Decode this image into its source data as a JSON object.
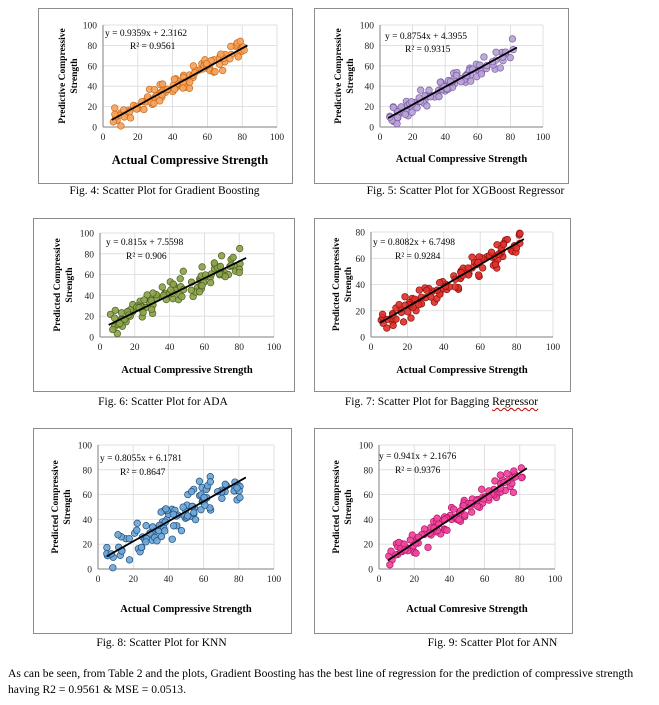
{
  "chart_data": [
    {
      "type": "scatter",
      "title": "",
      "ylabel_lines": [
        "Predictive Compressive",
        "Strength"
      ],
      "xlabel": "Actual Compressive Strength",
      "xlim": [
        0,
        100
      ],
      "ylim": [
        0,
        100
      ],
      "xticks": [
        0,
        20,
        40,
        60,
        80,
        100
      ],
      "yticks": [
        0,
        20,
        40,
        60,
        80,
        100
      ],
      "equation": "y = 0.9359x + 2.3162",
      "r2": "R² = 0.9561",
      "slope": 0.9359,
      "intercept": 2.3162,
      "trend_x": [
        5,
        83
      ],
      "n_points": 110,
      "x_range": [
        5,
        82
      ],
      "noise": 4.5,
      "seed": 11,
      "marker_fill": "#f7a35c",
      "marker_stroke": "#c96a1a",
      "grid": true
    },
    {
      "type": "scatter",
      "title": "",
      "ylabel_lines": [
        "Predictive Compressive",
        "Strength"
      ],
      "xlabel": "Actual Compressive Strength",
      "xlim": [
        0,
        100
      ],
      "ylim": [
        0,
        100
      ],
      "xticks": [
        0,
        20,
        40,
        60,
        80,
        100
      ],
      "yticks": [
        0,
        20,
        40,
        60,
        80,
        100
      ],
      "equation": "y = 0.8754x + 4.3955",
      "r2": "R² = 0.9315",
      "slope": 0.8754,
      "intercept": 4.3955,
      "trend_x": [
        5,
        84
      ],
      "n_points": 110,
      "x_range": [
        5,
        82
      ],
      "noise": 5,
      "seed": 23,
      "marker_fill": "#b9a3d6",
      "marker_stroke": "#7b5ea6",
      "grid": true
    },
    {
      "type": "scatter",
      "title": "",
      "ylabel_lines": [
        "Predicted Compressive",
        "Strength"
      ],
      "xlabel": "Actual Compressive Strength",
      "xlim": [
        0,
        100
      ],
      "ylim": [
        0,
        100
      ],
      "xticks": [
        0,
        20,
        40,
        60,
        80,
        100
      ],
      "yticks": [
        0,
        20,
        40,
        60,
        80,
        100
      ],
      "equation": "y = 0.815x + 7.5598",
      "r2": "R² = 0.906",
      "slope": 0.815,
      "intercept": 7.5598,
      "trend_x": [
        5,
        84
      ],
      "n_points": 110,
      "x_range": [
        5,
        82
      ],
      "noise": 6,
      "seed": 37,
      "marker_fill": "#8ba34a",
      "marker_stroke": "#4d6020",
      "grid": true
    },
    {
      "type": "scatter",
      "title": "",
      "ylabel_lines": [
        "Predicted Compressive",
        "Strength"
      ],
      "xlabel": "Actual Compressive Strength",
      "xlim": [
        0,
        100
      ],
      "ylim": [
        0,
        80
      ],
      "xticks": [
        0,
        20,
        40,
        60,
        80,
        100
      ],
      "yticks": [
        0,
        20,
        40,
        60,
        80
      ],
      "equation": "y = 0.8082x + 6.7498",
      "r2": "R² = 0.9284",
      "slope": 0.8082,
      "intercept": 6.7498,
      "trend_x": [
        5,
        84
      ],
      "n_points": 110,
      "x_range": [
        5,
        82
      ],
      "noise": 5,
      "seed": 53,
      "marker_fill": "#e0312b",
      "marker_stroke": "#8e1410",
      "grid": true
    },
    {
      "type": "scatter",
      "title": "",
      "ylabel_lines": [
        "Predicted Compressive",
        "Strength"
      ],
      "xlabel": "Actual Compressive Strength",
      "xlim": [
        0,
        100
      ],
      "ylim": [
        0,
        100
      ],
      "xticks": [
        0,
        20,
        40,
        60,
        80,
        100
      ],
      "yticks": [
        0,
        20,
        40,
        60,
        80,
        100
      ],
      "equation": "y = 0.8055x + 6.1781",
      "r2": "R² = 0.8647",
      "slope": 0.8055,
      "intercept": 6.1781,
      "trend_x": [
        5,
        84
      ],
      "n_points": 110,
      "x_range": [
        5,
        82
      ],
      "noise": 7,
      "seed": 71,
      "marker_fill": "#6ea6d8",
      "marker_stroke": "#1f4e79",
      "grid": true
    },
    {
      "type": "scatter",
      "title": "",
      "ylabel_lines": [
        "Predicted Compressive",
        "Strength"
      ],
      "xlabel": "Actual Comresive Strength",
      "xlim": [
        0,
        100
      ],
      "ylim": [
        0,
        100
      ],
      "xticks": [
        0,
        20,
        40,
        60,
        80,
        100
      ],
      "yticks": [
        0,
        20,
        40,
        60,
        80,
        100
      ],
      "equation": "y = 0.941x + 2.1676",
      "r2": "R² = 0.9376",
      "slope": 0.941,
      "intercept": 2.1676,
      "trend_x": [
        5,
        84
      ],
      "n_points": 110,
      "x_range": [
        5,
        82
      ],
      "noise": 5,
      "seed": 89,
      "marker_fill": "#f0449a",
      "marker_stroke": "#b0176a",
      "grid": true
    }
  ],
  "captions": {
    "fig4": "Fig. 4: Scatter Plot for Gradient Boosting",
    "fig5": "Fig. 5: Scatter Plot for XGBoost Regressor",
    "fig6": "Fig. 6: Scatter Plot for ADA",
    "fig7_pre": "Fig. 7: Scatter Plot for Bagging ",
    "fig7_word": "Regressor",
    "fig8": "Fig. 8: Scatter Plot for KNN",
    "fig9": "Fig. 9: Scatter Plot for ANN"
  },
  "paragraph": "As can be seen, from Table 2 and the plots, Gradient Boosting has the best line of regression for the prediction of compressive strength having R2 = 0.9561 & MSE = 0.0513."
}
